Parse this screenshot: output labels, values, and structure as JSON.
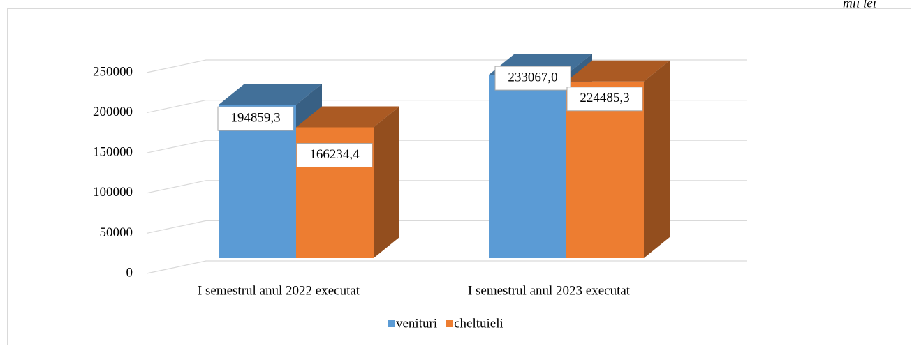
{
  "chart_data": {
    "type": "bar3d",
    "unit_note": "mii lei",
    "categories": [
      "I semestrul anul 2022 executat",
      "I semestrul anul 2023 executat"
    ],
    "series": [
      {
        "name": "venituri",
        "color": "#5b9bd5",
        "values": [
          194859.3,
          233067.0
        ],
        "value_labels": [
          "194859,3",
          "233067,0"
        ]
      },
      {
        "name": "cheltuieli",
        "color": "#ed7d31",
        "values": [
          166234.4,
          224485.3
        ],
        "value_labels": [
          "166234,4",
          "224485,3"
        ]
      }
    ],
    "ylim": [
      0,
      250000
    ],
    "yticks": [
      0,
      50000,
      100000,
      150000,
      200000,
      250000
    ],
    "grid": true,
    "legend": "bottom"
  }
}
